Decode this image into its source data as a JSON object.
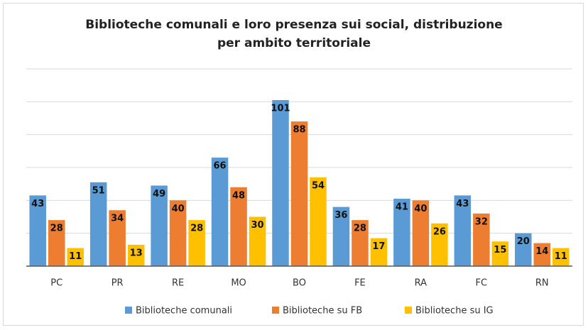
{
  "chart_data": {
    "type": "bar",
    "title": "Biblioteche comunali e loro presenza sui social, distribuzione per ambito territoriale",
    "categories": [
      "PC",
      "PR",
      "RE",
      "MO",
      "BO",
      "FE",
      "RA",
      "FC",
      "RN"
    ],
    "series": [
      {
        "name": "Biblioteche comunali",
        "color": "#5b9bd5",
        "values": [
          43,
          51,
          49,
          66,
          101,
          36,
          41,
          43,
          20
        ]
      },
      {
        "name": "Biblioteche su FB",
        "color": "#ed7d31",
        "values": [
          28,
          34,
          40,
          48,
          88,
          28,
          40,
          32,
          14
        ]
      },
      {
        "name": "Biblioteche su IG",
        "color": "#ffc000",
        "values": [
          11,
          13,
          28,
          30,
          54,
          17,
          26,
          15,
          11
        ]
      }
    ],
    "ylim": [
      0,
      120
    ],
    "yticks": [
      0,
      20,
      40,
      60,
      80,
      100,
      120
    ],
    "grid": true,
    "legend": "bottom"
  }
}
